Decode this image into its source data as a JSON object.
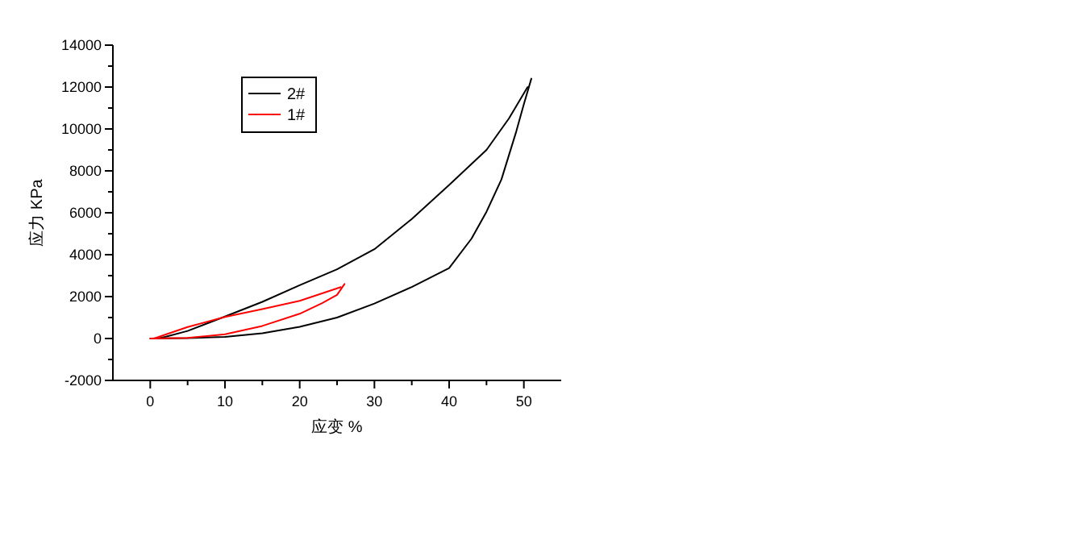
{
  "chart_data": {
    "type": "line",
    "xlabel": "应变  %",
    "ylabel": "应力  KPa",
    "xlim": [
      -5,
      55
    ],
    "xticks": [
      0,
      10,
      20,
      30,
      40,
      50
    ],
    "ylim": [
      -2000,
      14000
    ],
    "yticks": [
      -2000,
      0,
      2000,
      4000,
      6000,
      8000,
      10000,
      12000,
      14000
    ],
    "grid": false,
    "legend": "top left",
    "marker": "none",
    "line_style": "solid",
    "series": [
      {
        "name": "2#",
        "color": "#000000",
        "x": [
          0,
          5,
          10,
          15,
          20,
          25,
          30,
          35,
          40,
          43,
          45,
          47,
          49,
          50,
          51
        ],
        "values": [
          0,
          20,
          80,
          250,
          560,
          1000,
          1670,
          2460,
          3360,
          4770,
          6050,
          7590,
          9900,
          11180,
          12400
        ]
      },
      {
        "color": "#000000",
        "x": [
          1,
          2,
          5,
          10,
          15,
          20,
          25,
          30,
          35,
          40,
          45,
          48,
          50.5
        ],
        "values": [
          0,
          80,
          360,
          1050,
          1750,
          2540,
          3300,
          4260,
          5700,
          7330,
          9000,
          10500,
          12000
        ]
      },
      {
        "name": "1#",
        "color": "#ff0000",
        "x": [
          0,
          5,
          10,
          15,
          20,
          23,
          25,
          26
        ],
        "values": [
          0,
          30,
          200,
          600,
          1180,
          1690,
          2080,
          2600
        ]
      },
      {
        "color": "#ff0000",
        "x": [
          0.5,
          5,
          10,
          15,
          20,
          25.5
        ],
        "values": [
          0,
          550,
          1030,
          1400,
          1800,
          2450
        ]
      }
    ]
  }
}
